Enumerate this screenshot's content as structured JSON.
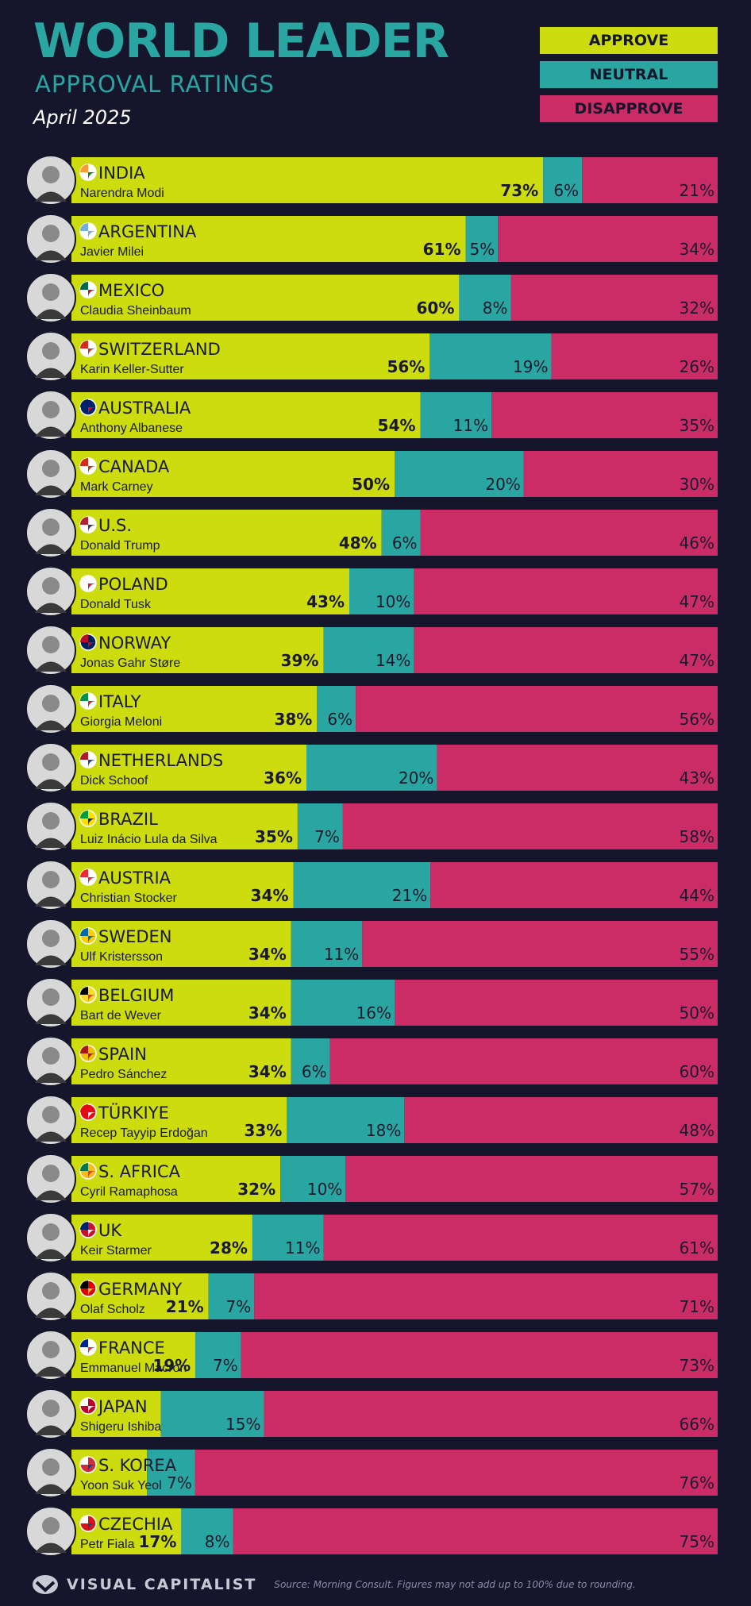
{
  "header": {
    "title": "WORLD LEADER",
    "subtitle": "APPROVAL RATINGS",
    "date": "April 2025"
  },
  "legend": [
    {
      "label": "APPROVE",
      "color": "#ccdc0e"
    },
    {
      "label": "NEUTRAL",
      "color": "#2aa6a2"
    },
    {
      "label": "DISAPPROVE",
      "color": "#cc2c66"
    }
  ],
  "footer": {
    "brand": "VISUAL CAPITALIST",
    "source": "Source: Morning Consult. Figures may not add up to 100% due to rounding."
  },
  "chart_data": {
    "type": "bar",
    "stacked": true,
    "orientation": "horizontal",
    "series": [
      {
        "name": "APPROVE",
        "color": "#ccdc0e",
        "values": [
          73,
          61,
          60,
          56,
          54,
          50,
          48,
          43,
          39,
          38,
          36,
          35,
          34,
          34,
          34,
          34,
          33,
          32,
          28,
          21,
          19,
          13,
          11,
          17
        ]
      },
      {
        "name": "NEUTRAL",
        "color": "#2aa6a2",
        "values": [
          6,
          5,
          8,
          19,
          11,
          20,
          6,
          10,
          14,
          6,
          20,
          7,
          21,
          11,
          16,
          6,
          18,
          10,
          11,
          7,
          7,
          15,
          7,
          8
        ]
      },
      {
        "name": "DISAPPROVE",
        "color": "#cc2c66",
        "values": [
          21,
          34,
          32,
          26,
          35,
          30,
          46,
          47,
          47,
          56,
          43,
          58,
          44,
          55,
          50,
          60,
          48,
          57,
          61,
          71,
          73,
          66,
          76,
          75
        ]
      }
    ],
    "labels": {
      "approve": [
        "73%",
        "61%",
        "60%",
        "56%",
        "54%",
        "50%",
        "48%",
        "43%",
        "39%",
        "38%",
        "36%",
        "35%",
        "34%",
        "34%",
        "34%",
        "34%",
        "33%",
        "32%",
        "28%",
        "21%",
        "19%",
        "",
        "",
        "17%"
      ],
      "neutral": [
        "6%",
        "5%",
        "8%",
        "19%",
        "11%",
        "20%",
        "6%",
        "10%",
        "14%",
        "6%",
        "20%",
        "7%",
        "21%",
        "11%",
        "16%",
        "6%",
        "18%",
        "10%",
        "11%",
        "7%",
        "7%",
        "15%",
        "7%",
        "8%"
      ],
      "disapprove": [
        "21%",
        "34%",
        "32%",
        "26%",
        "35%",
        "30%",
        "46%",
        "47%",
        "47%",
        "56%",
        "43%",
        "58%",
        "44%",
        "55%",
        "50%",
        "60%",
        "48%",
        "57%",
        "61%",
        "71%",
        "73%",
        "66%",
        "76%",
        "75%"
      ]
    },
    "rows": [
      {
        "country": "INDIA",
        "leader": "Narendra Modi"
      },
      {
        "country": "ARGENTINA",
        "leader": "Javier Milei"
      },
      {
        "country": "MEXICO",
        "leader": "Claudia Sheinbaum"
      },
      {
        "country": "SWITZERLAND",
        "leader": "Karin Keller-Sutter"
      },
      {
        "country": "AUSTRALIA",
        "leader": "Anthony Albanese"
      },
      {
        "country": "CANADA",
        "leader": "Mark Carney"
      },
      {
        "country": "U.S.",
        "leader": "Donald Trump"
      },
      {
        "country": "POLAND",
        "leader": "Donald Tusk"
      },
      {
        "country": "NORWAY",
        "leader": "Jonas Gahr Støre"
      },
      {
        "country": "ITALY",
        "leader": "Giorgia Meloni"
      },
      {
        "country": "NETHERLANDS",
        "leader": "Dick Schoof"
      },
      {
        "country": "BRAZIL",
        "leader": "Luiz Inácio Lula da Silva"
      },
      {
        "country": "AUSTRIA",
        "leader": "Christian Stocker"
      },
      {
        "country": "SWEDEN",
        "leader": "Ulf Kristersson"
      },
      {
        "country": "BELGIUM",
        "leader": "Bart de Wever"
      },
      {
        "country": "SPAIN",
        "leader": "Pedro Sánchez"
      },
      {
        "country": "TÜRKIYE",
        "leader": "Recep Tayyip Erdoğan"
      },
      {
        "country": "S. AFRICA",
        "leader": "Cyril Ramaphosa"
      },
      {
        "country": "UK",
        "leader": "Keir Starmer"
      },
      {
        "country": "GERMANY",
        "leader": "Olaf Scholz"
      },
      {
        "country": "FRANCE",
        "leader": "Emmanuel Macron"
      },
      {
        "country": "JAPAN",
        "leader": "Shigeru Ishiba"
      },
      {
        "country": "S. KOREA",
        "leader": "Yoon Suk Yeol"
      },
      {
        "country": "CZECHIA",
        "leader": "Petr Fiala"
      }
    ],
    "flag_colors": [
      [
        "#ff9933",
        "#ffffff",
        "#138808"
      ],
      [
        "#74acdf",
        "#ffffff",
        "#74acdf"
      ],
      [
        "#006847",
        "#ffffff",
        "#ce1126"
      ],
      [
        "#d52b1e",
        "#ffffff",
        "#d52b1e"
      ],
      [
        "#012169",
        "#012169",
        "#e4002b"
      ],
      [
        "#d52b1e",
        "#ffffff",
        "#d52b1e"
      ],
      [
        "#b22234",
        "#ffffff",
        "#3c3b6e"
      ],
      [
        "#ffffff",
        "#ffffff",
        "#dc143c"
      ],
      [
        "#ba0c2f",
        "#00205b",
        "#ba0c2f"
      ],
      [
        "#009246",
        "#ffffff",
        "#ce2b37"
      ],
      [
        "#ae1c28",
        "#ffffff",
        "#21468b"
      ],
      [
        "#009c3b",
        "#ffdf00",
        "#002776"
      ],
      [
        "#ed2939",
        "#ffffff",
        "#ed2939"
      ],
      [
        "#006aa7",
        "#fecc00",
        "#006aa7"
      ],
      [
        "#000000",
        "#fdda24",
        "#ef3340"
      ],
      [
        "#aa151b",
        "#f1bf00",
        "#aa151b"
      ],
      [
        "#e30a17",
        "#e30a17",
        "#ffffff"
      ],
      [
        "#007749",
        "#ffb81c",
        "#de3831"
      ],
      [
        "#012169",
        "#c8102e",
        "#ffffff"
      ],
      [
        "#000000",
        "#dd0000",
        "#ffce00"
      ],
      [
        "#002395",
        "#ffffff",
        "#ed2939"
      ],
      [
        "#ffffff",
        "#bc002d",
        "#ffffff"
      ],
      [
        "#ffffff",
        "#cd2e3a",
        "#0047a0"
      ],
      [
        "#ffffff",
        "#d7141a",
        "#11457e"
      ]
    ],
    "xlim": [
      0,
      100
    ]
  }
}
